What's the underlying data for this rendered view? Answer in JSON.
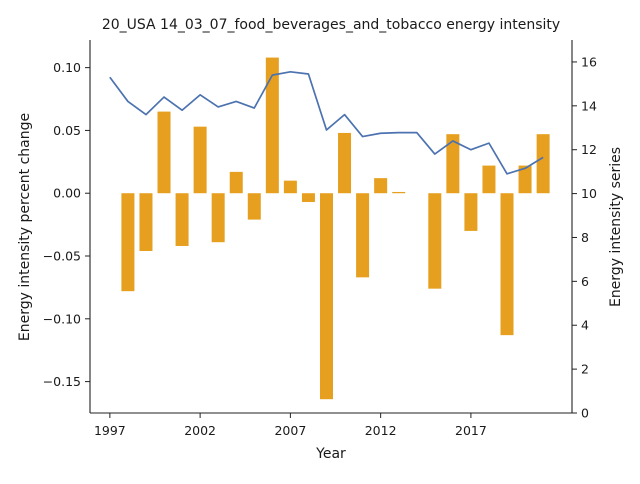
{
  "chart_data": {
    "type": "bar",
    "title": "20_USA 14_03_07_food_beverages_and_tobacco energy intensity",
    "xlabel": "Year",
    "ylabel_left": "Energy intensity percent change",
    "ylabel_right": "Energy intensity series",
    "x_ticks": [
      1997,
      2002,
      2007,
      2012,
      2017
    ],
    "left_axis": {
      "ylim": [
        -0.175,
        0.122
      ],
      "ticks": [
        0.1,
        0.05,
        0.0,
        -0.05,
        -0.1,
        -0.15
      ],
      "tick_labels": [
        "0.10",
        "0.05",
        "0.00",
        "−0.05",
        "−0.10",
        "−0.15"
      ]
    },
    "right_axis": {
      "ylim": [
        0,
        17.0
      ],
      "ticks": [
        0,
        2,
        4,
        6,
        8,
        10,
        12,
        14,
        16
      ],
      "tick_labels": [
        "0",
        "2",
        "4",
        "6",
        "8",
        "10",
        "12",
        "14",
        "16"
      ]
    },
    "xlim": [
      1995.9,
      2022.6
    ],
    "grid": false,
    "bar_series": {
      "name": "percent change",
      "color": "#e69f1e",
      "years": [
        1998,
        1999,
        2000,
        2001,
        2002,
        2003,
        2004,
        2005,
        2006,
        2007,
        2008,
        2009,
        2010,
        2011,
        2012,
        2013,
        2014,
        2015,
        2016,
        2017,
        2018,
        2019,
        2020,
        2021
      ],
      "values": [
        -0.078,
        -0.046,
        0.065,
        -0.042,
        0.053,
        -0.039,
        0.017,
        -0.021,
        0.108,
        0.01,
        -0.007,
        -0.164,
        0.048,
        -0.067,
        0.012,
        0.001,
        0.0,
        -0.076,
        0.047,
        -0.03,
        0.022,
        -0.113,
        0.022,
        0.047
      ]
    },
    "line_series": {
      "name": "series",
      "color": "#4c72b0",
      "years": [
        1997,
        1998,
        1999,
        2000,
        2001,
        2002,
        2003,
        2004,
        2005,
        2006,
        2007,
        2008,
        2009,
        2010,
        2011,
        2012,
        2013,
        2014,
        2015,
        2016,
        2017,
        2018,
        2019,
        2020,
        2021
      ],
      "values": [
        15.3,
        14.2,
        13.6,
        14.4,
        13.8,
        14.5,
        13.95,
        14.2,
        13.9,
        15.4,
        15.55,
        15.45,
        12.9,
        13.6,
        12.6,
        12.75,
        12.78,
        12.78,
        11.8,
        12.4,
        12.0,
        12.3,
        10.9,
        11.15,
        11.65
      ]
    }
  }
}
